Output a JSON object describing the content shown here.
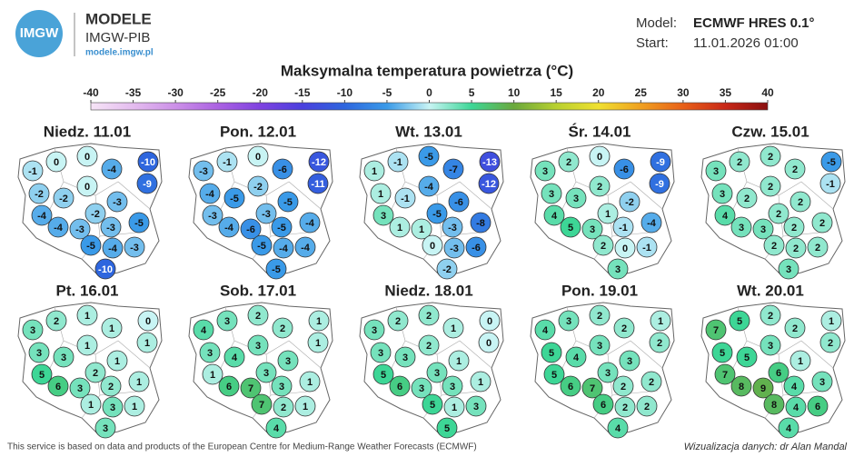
{
  "header": {
    "logo_text": "IMGW",
    "brand": "MODELE",
    "org": "IMGW-PIB",
    "url": "modele.imgw.pl",
    "model_label": "Model:",
    "model": "ECMWF HRES 0.1°",
    "start_label": "Start:",
    "start": "11.01.2026 01:00"
  },
  "title": "Maksymalna temperatura powietrza (°C)",
  "colorbar": {
    "ticks": [
      -40,
      -35,
      -30,
      -25,
      -20,
      -15,
      -10,
      -5,
      0,
      5,
      10,
      15,
      20,
      25,
      30,
      35,
      40
    ],
    "colors": [
      "#f6e4f6",
      "#e4bcef",
      "#cc90e8",
      "#ab62e2",
      "#7f42e0",
      "#4a40de",
      "#2e66de",
      "#3a9ae8",
      "#c8f4f4",
      "#3dd696",
      "#6aa83c",
      "#b8d030",
      "#f0e030",
      "#f0a020",
      "#e86018",
      "#c82818",
      "#8a1010"
    ]
  },
  "panels": [
    {
      "title": "Niedz. 11.01",
      "values": [
        0,
        0,
        -1,
        -4,
        -10,
        -9,
        0,
        -2,
        -2,
        -3,
        -4,
        -2,
        -5,
        -4,
        -3,
        -3,
        -5,
        -4,
        -3,
        -10
      ]
    },
    {
      "title": "Pon. 12.01",
      "values": [
        -1,
        0,
        -3,
        -6,
        -12,
        -11,
        -2,
        -4,
        -5,
        -5,
        -3,
        -3,
        -4,
        -4,
        -6,
        -5,
        -5,
        -4,
        -4,
        -5
      ]
    },
    {
      "title": "Wt. 13.01",
      "values": [
        -1,
        -5,
        1,
        -7,
        -13,
        -12,
        -4,
        1,
        -1,
        -6,
        3,
        -5,
        -8,
        1,
        1,
        -3,
        0,
        -3,
        -6,
        -2
      ]
    },
    {
      "title": "Śr. 14.01",
      "values": [
        2,
        0,
        3,
        -6,
        -9,
        -9,
        2,
        3,
        3,
        -2,
        4,
        1,
        -4,
        5,
        3,
        -1,
        2,
        0,
        -1,
        3
      ]
    },
    {
      "title": "Czw. 15.01",
      "values": [
        2,
        2,
        3,
        2,
        -5,
        -1,
        2,
        3,
        2,
        2,
        4,
        2,
        2,
        3,
        3,
        2,
        2,
        2,
        2,
        3
      ]
    },
    {
      "title": "Pt. 16.01",
      "values": [
        2,
        1,
        3,
        1,
        0,
        1,
        1,
        3,
        3,
        1,
        5,
        2,
        1,
        6,
        3,
        2,
        1,
        3,
        1,
        3
      ]
    },
    {
      "title": "Sob. 17.01",
      "values": [
        3,
        2,
        4,
        2,
        1,
        1,
        3,
        3,
        4,
        3,
        1,
        3,
        1,
        6,
        7,
        3,
        7,
        2,
        1,
        4
      ]
    },
    {
      "title": "Niedz. 18.01",
      "values": [
        2,
        2,
        3,
        1,
        0,
        0,
        2,
        3,
        3,
        1,
        5,
        3,
        1,
        6,
        3,
        3,
        5,
        1,
        3,
        5
      ]
    },
    {
      "title": "Pon. 19.01",
      "values": [
        3,
        2,
        4,
        2,
        1,
        2,
        3,
        5,
        4,
        3,
        5,
        3,
        2,
        6,
        7,
        2,
        6,
        2,
        2,
        4
      ]
    },
    {
      "title": "Wt. 20.01",
      "values": [
        5,
        2,
        7,
        2,
        1,
        2,
        3,
        5,
        5,
        1,
        7,
        6,
        3,
        8,
        9,
        4,
        8,
        4,
        6,
        4
      ]
    }
  ],
  "footer": {
    "source": "This service is based on data and products of the European Centre for Medium-Range Weather Forecasts (ECMWF)",
    "credit": "Wizualizacja danych: dr Alan Mandal"
  }
}
